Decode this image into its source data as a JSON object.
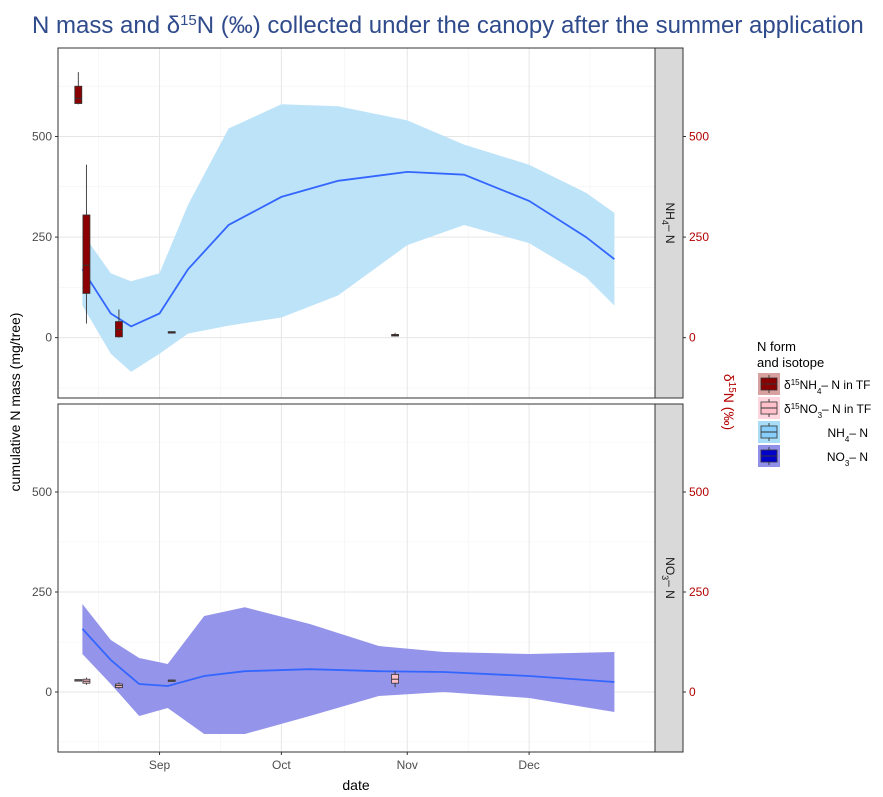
{
  "chart_data": {
    "type": "line",
    "title": "N mass and δ15N (‰) collected under the canopy after the summer application",
    "title_parts": {
      "pre": "N mass and ",
      "delta": "δ",
      "sup": "15",
      "post": "N (‰) collected under the canopy after the summer application"
    },
    "xlabel": "date",
    "ylabel": "cumulative N mass (mg/tree)",
    "ylabel_secondary": "δ15N (‰)",
    "x_ticks": [
      {
        "label": "Sep",
        "date": "2018-09-01"
      },
      {
        "label": "Oct",
        "date": "2018-10-01"
      },
      {
        "label": "Nov",
        "date": "2018-11-01"
      },
      {
        "label": "Dec",
        "date": "2018-12-01"
      }
    ],
    "x_range": [
      "2018-08-07",
      "2019-01-01"
    ],
    "y_range": [
      -150,
      720
    ],
    "y_ticks": [
      0,
      250,
      500
    ],
    "y2_ticks": [
      0,
      250,
      500
    ],
    "grid": true,
    "legend": {
      "title_line1": "N form",
      "title_line2": "and isotope",
      "placement": "right",
      "items": [
        {
          "pre": "δ",
          "sup": "15",
          "main": "NH",
          "sub": "4",
          "post": "– N in TF",
          "fill": "#8b0000",
          "key_bg": "#d9a0a0",
          "align": "left"
        },
        {
          "pre": "δ",
          "sup": "15",
          "main": "NO",
          "sub": "3",
          "post": "– N in TF",
          "fill": "#ffc0cb",
          "key_bg": "#ffd6dd",
          "align": "left"
        },
        {
          "pre": "",
          "sup": "",
          "main": "NH",
          "sub": "4",
          "post": "– N",
          "fill": "#87cefa",
          "key_bg": "#a8dcf7",
          "align": "right"
        },
        {
          "pre": "",
          "sup": "",
          "main": "NO",
          "sub": "3",
          "post": "– N",
          "fill": "#0000cd",
          "key_bg": "#9090e8",
          "align": "right"
        }
      ]
    },
    "panels": [
      {
        "strip_main": "NH",
        "strip_sub": "4",
        "strip_post": "– N",
        "ribbon_color": "#bde3f9",
        "smooth_color": "#3366ff",
        "smooth": [
          {
            "date": "2018-08-13",
            "y": 170,
            "lo": 80,
            "hi": 260
          },
          {
            "date": "2018-08-20",
            "y": 60,
            "lo": -40,
            "hi": 160
          },
          {
            "date": "2018-08-25",
            "y": 28,
            "lo": -85,
            "hi": 140
          },
          {
            "date": "2018-09-01",
            "y": 60,
            "lo": -40,
            "hi": 160
          },
          {
            "date": "2018-09-08",
            "y": 170,
            "lo": 10,
            "hi": 330
          },
          {
            "date": "2018-09-18",
            "y": 280,
            "lo": 30,
            "hi": 520
          },
          {
            "date": "2018-10-01",
            "y": 350,
            "lo": 50,
            "hi": 580
          },
          {
            "date": "2018-10-15",
            "y": 390,
            "lo": 105,
            "hi": 575
          },
          {
            "date": "2018-11-01",
            "y": 412,
            "lo": 230,
            "hi": 540
          },
          {
            "date": "2018-11-15",
            "y": 405,
            "lo": 280,
            "hi": 480
          },
          {
            "date": "2018-12-01",
            "y": 340,
            "lo": 235,
            "hi": 430
          },
          {
            "date": "2018-12-15",
            "y": 250,
            "lo": 150,
            "hi": 360
          },
          {
            "date": "2018-12-22",
            "y": 195,
            "lo": 80,
            "hi": 310
          }
        ],
        "boxes": [
          {
            "date": "2018-08-12",
            "min": 580,
            "q1": 582,
            "median": 595,
            "q3": 625,
            "max": 660,
            "series": "δ15NH4–N in TF"
          },
          {
            "date": "2018-08-14",
            "min": 35,
            "q1": 110,
            "median": 180,
            "q3": 305,
            "max": 430,
            "series": "δ15NH4–N in TF"
          },
          {
            "date": "2018-08-22",
            "min": 0,
            "q1": 2,
            "median": 20,
            "q3": 40,
            "max": 70,
            "series": "δ15NH4–N in TF"
          },
          {
            "date": "2018-09-04",
            "min": 14,
            "q1": 14,
            "median": 14,
            "q3": 15,
            "max": 15,
            "series": "δ15NH4–N in TF"
          },
          {
            "date": "2018-10-29",
            "min": 3,
            "q1": 4,
            "median": 6,
            "q3": 8,
            "max": 12,
            "series": "δ15NH4–N in TF"
          }
        ]
      },
      {
        "strip_main": "NO",
        "strip_sub": "3",
        "strip_post": "– N",
        "ribbon_color": "#9494ea",
        "smooth_color": "#3366ff",
        "smooth": [
          {
            "date": "2018-08-13",
            "y": 158,
            "lo": 95,
            "hi": 220
          },
          {
            "date": "2018-08-20",
            "y": 80,
            "lo": 20,
            "hi": 130
          },
          {
            "date": "2018-08-27",
            "y": 20,
            "lo": -60,
            "hi": 85
          },
          {
            "date": "2018-09-03",
            "y": 15,
            "lo": -40,
            "hi": 70
          },
          {
            "date": "2018-09-12",
            "y": 40,
            "lo": -105,
            "hi": 190
          },
          {
            "date": "2018-09-22",
            "y": 52,
            "lo": -105,
            "hi": 212
          },
          {
            "date": "2018-10-08",
            "y": 57,
            "lo": -60,
            "hi": 170
          },
          {
            "date": "2018-10-25",
            "y": 52,
            "lo": -10,
            "hi": 115
          },
          {
            "date": "2018-11-10",
            "y": 50,
            "lo": 0,
            "hi": 100
          },
          {
            "date": "2018-12-01",
            "y": 40,
            "lo": -15,
            "hi": 95
          },
          {
            "date": "2018-12-22",
            "y": 25,
            "lo": -50,
            "hi": 100
          }
        ],
        "boxes": [
          {
            "date": "2018-08-12",
            "min": 28,
            "q1": 28,
            "median": 30,
            "q3": 31,
            "max": 31,
            "series": "δ15NO3–N in TF"
          },
          {
            "date": "2018-08-14",
            "min": 18,
            "q1": 22,
            "median": 27,
            "q3": 32,
            "max": 36,
            "series": "δ15NO3–N in TF"
          },
          {
            "date": "2018-08-22",
            "min": 8,
            "q1": 11,
            "median": 16,
            "q3": 20,
            "max": 24,
            "series": "δ15NO3–N in TF"
          },
          {
            "date": "2018-09-04",
            "min": 27,
            "q1": 28,
            "median": 29,
            "q3": 30,
            "max": 31,
            "series": "δ15NO3–N in TF"
          },
          {
            "date": "2018-10-29",
            "min": 12,
            "q1": 22,
            "median": 32,
            "q3": 44,
            "max": 52,
            "series": "δ15NO3–N in TF"
          }
        ]
      }
    ]
  }
}
